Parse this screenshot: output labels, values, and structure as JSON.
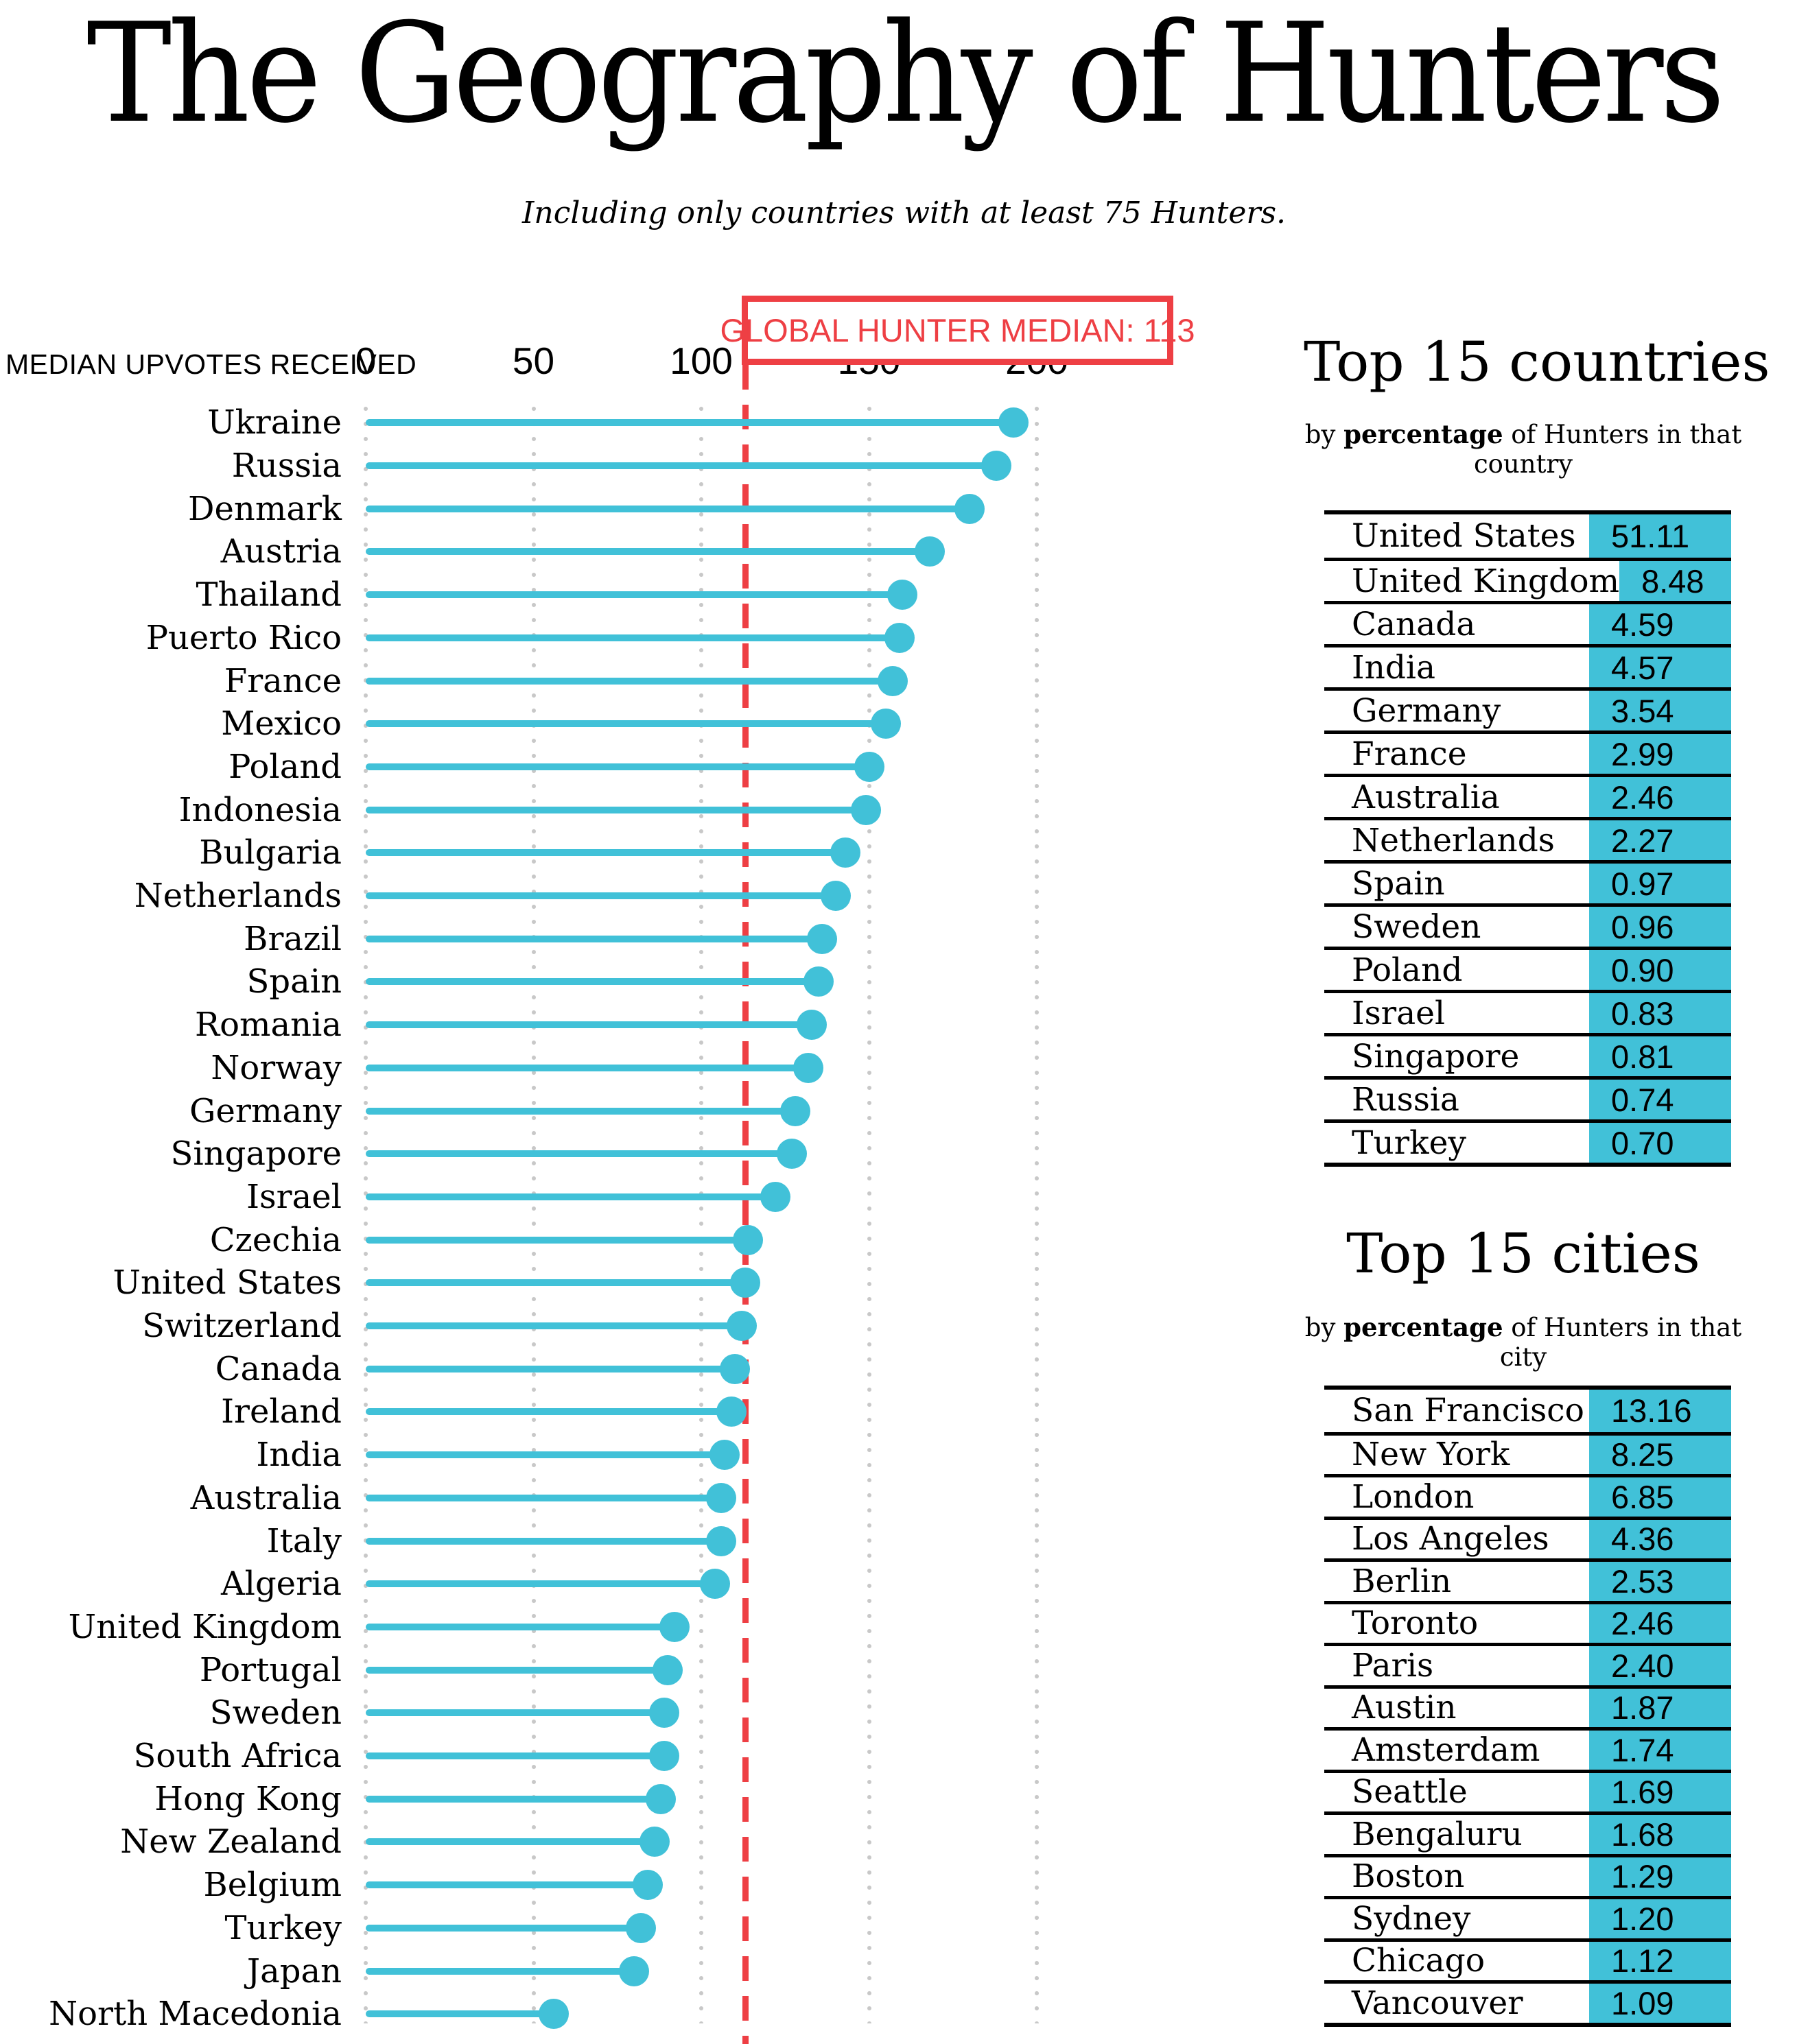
{
  "title": "The Geography of Hunters",
  "subtitle": "Including only countries with at least 75 Hunters.",
  "colors": {
    "accent_cyan": "#41C1D8",
    "accent_red": "#EE3F44",
    "gridline_gray": "#C8C8C8",
    "text": "#000000"
  },
  "median_box": {
    "label": "GLOBAL HUNTER MEDIAN: 113",
    "value": 113
  },
  "chart_data": {
    "type": "bar",
    "style": "lollipop",
    "orientation": "horizontal",
    "title": "",
    "xlabel": "MEDIAN UPVOTES RECEIVED",
    "ylabel": "",
    "x_ticks": [
      0,
      50,
      100,
      150,
      200
    ],
    "xlim": [
      0,
      210
    ],
    "grid": "dotted-vertical-gridlines",
    "legend": "none",
    "reference_line": {
      "label": "GLOBAL HUNTER MEDIAN: 113",
      "value": 113
    },
    "categories": [
      "Ukraine",
      "Russia",
      "Denmark",
      "Austria",
      "Thailand",
      "Puerto Rico",
      "France",
      "Mexico",
      "Poland",
      "Indonesia",
      "Bulgaria",
      "Netherlands",
      "Brazil",
      "Spain",
      "Romania",
      "Norway",
      "Germany",
      "Singapore",
      "Israel",
      "Czechia",
      "United States",
      "Switzerland",
      "Canada",
      "Ireland",
      "India",
      "Australia",
      "Italy",
      "Algeria",
      "United Kingdom",
      "Portugal",
      "Sweden",
      "South Africa",
      "Hong Kong",
      "New Zealand",
      "Belgium",
      "Turkey",
      "Japan",
      "North Macedonia"
    ],
    "values": [
      193,
      188,
      180,
      168,
      160,
      159,
      157,
      155,
      150,
      149,
      143,
      140,
      136,
      135,
      133,
      132,
      128,
      127,
      122,
      114,
      113,
      112,
      110,
      109,
      107,
      106,
      106,
      104,
      92,
      90,
      89,
      89,
      88,
      86,
      84,
      82,
      80,
      56
    ]
  },
  "countries_panel": {
    "title": "Top 15 countries",
    "subtitle_prefix": "by ",
    "subtitle_bold": "percentage",
    "subtitle_suffix": " of Hunters in that country",
    "rows": [
      {
        "name": "United States",
        "value": "51.11"
      },
      {
        "name": "United Kingdom",
        "value": "8.48"
      },
      {
        "name": "Canada",
        "value": "4.59"
      },
      {
        "name": "India",
        "value": "4.57"
      },
      {
        "name": "Germany",
        "value": "3.54"
      },
      {
        "name": "France",
        "value": "2.99"
      },
      {
        "name": "Australia",
        "value": "2.46"
      },
      {
        "name": "Netherlands",
        "value": "2.27"
      },
      {
        "name": "Spain",
        "value": "0.97"
      },
      {
        "name": "Sweden",
        "value": "0.96"
      },
      {
        "name": "Poland",
        "value": "0.90"
      },
      {
        "name": "Israel",
        "value": "0.83"
      },
      {
        "name": "Singapore",
        "value": "0.81"
      },
      {
        "name": "Russia",
        "value": "0.74"
      },
      {
        "name": "Turkey",
        "value": "0.70"
      }
    ]
  },
  "cities_panel": {
    "title": "Top 15 cities",
    "subtitle_prefix": "by ",
    "subtitle_bold": "percentage",
    "subtitle_suffix": " of Hunters in that city",
    "rows": [
      {
        "name": "San Francisco",
        "value": "13.16"
      },
      {
        "name": "New York",
        "value": "8.25"
      },
      {
        "name": "London",
        "value": "6.85"
      },
      {
        "name": "Los Angeles",
        "value": "4.36"
      },
      {
        "name": "Berlin",
        "value": "2.53"
      },
      {
        "name": "Toronto",
        "value": "2.46"
      },
      {
        "name": "Paris",
        "value": "2.40"
      },
      {
        "name": "Austin",
        "value": "1.87"
      },
      {
        "name": "Amsterdam",
        "value": "1.74"
      },
      {
        "name": "Seattle",
        "value": "1.69"
      },
      {
        "name": "Bengaluru",
        "value": "1.68"
      },
      {
        "name": "Boston",
        "value": "1.29"
      },
      {
        "name": "Sydney",
        "value": "1.20"
      },
      {
        "name": "Chicago",
        "value": "1.12"
      },
      {
        "name": "Vancouver",
        "value": "1.09"
      }
    ]
  }
}
